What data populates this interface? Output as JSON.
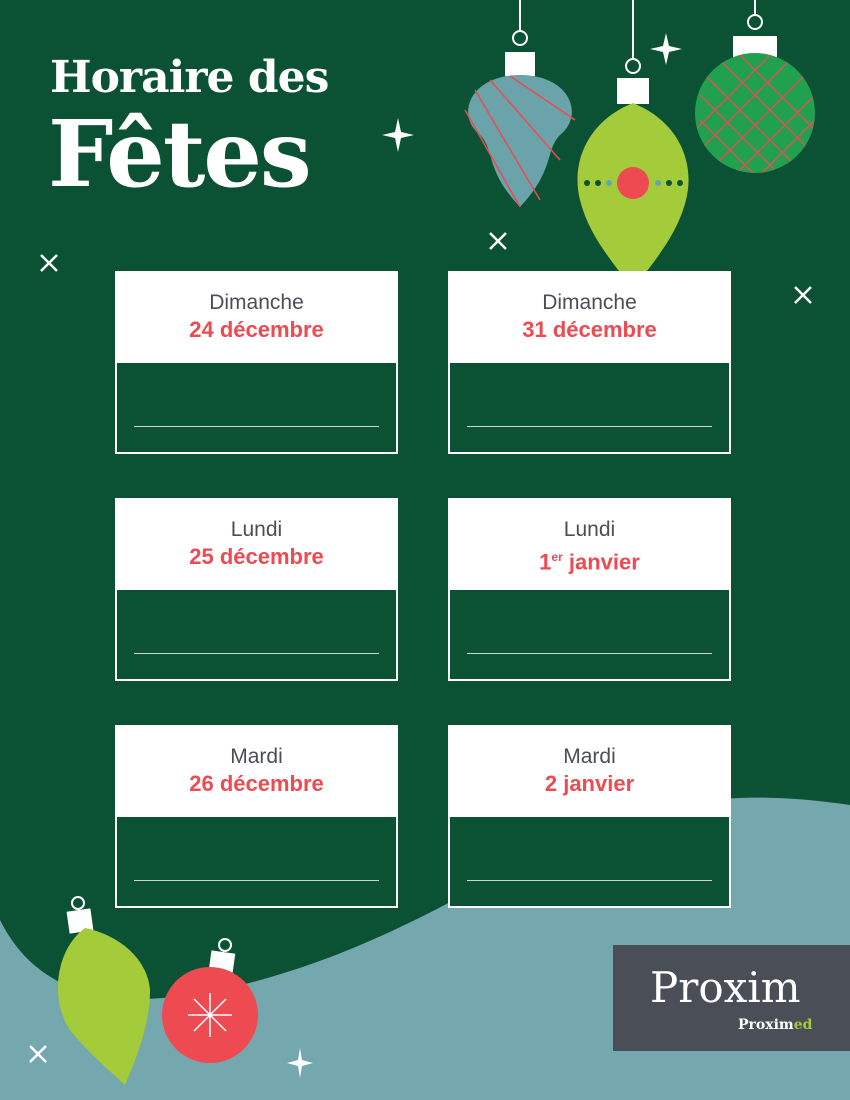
{
  "title": {
    "line1": "Horaire des",
    "line2": "Fêtes"
  },
  "colors": {
    "background": "#0a5233",
    "accent_red": "#ee4a52",
    "teal": "#74a8ae",
    "lime": "#a4cc3a",
    "logo_bg": "#4a4f57"
  },
  "cards": [
    {
      "day": "Dimanche",
      "date": "24 décembre"
    },
    {
      "day": "Dimanche",
      "date": "31 décembre"
    },
    {
      "day": "Lundi",
      "date": "25 décembre"
    },
    {
      "day": "Lundi",
      "date_num": "1",
      "date_sup": "er",
      "date_rest": " janvier"
    },
    {
      "day": "Mardi",
      "date": "26 décembre"
    },
    {
      "day": "Mardi",
      "date": "2 janvier"
    }
  ],
  "logo": {
    "main": "Proxim",
    "sub": "Proxim",
    "sub_accent": "ed"
  }
}
